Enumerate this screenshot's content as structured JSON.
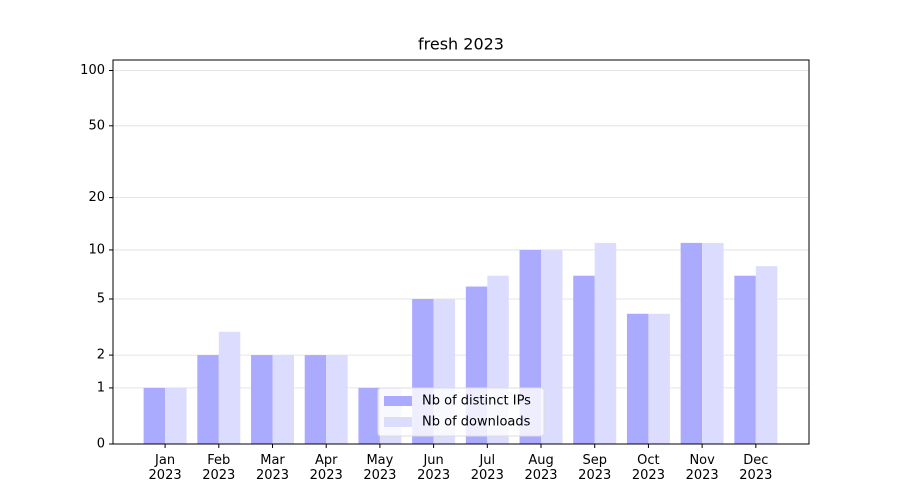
{
  "chart_data": {
    "type": "bar",
    "title": "fresh 2023",
    "categories": [
      "Jan\n2023",
      "Feb\n2023",
      "Mar\n2023",
      "Apr\n2023",
      "May\n2023",
      "Jun\n2023",
      "Jul\n2023",
      "Aug\n2023",
      "Sep\n2023",
      "Oct\n2023",
      "Nov\n2023",
      "Dec\n2023"
    ],
    "series": [
      {
        "name": "Nb of distinct IPs",
        "color": "#aaaaff",
        "values": [
          1,
          2,
          2,
          2,
          1,
          5,
          6,
          10,
          7,
          4,
          11,
          7
        ]
      },
      {
        "name": "Nb of downloads",
        "color": "#dcdcff",
        "values": [
          1,
          3,
          2,
          2,
          1,
          5,
          7,
          10,
          11,
          4,
          11,
          8
        ]
      }
    ],
    "yscale": "log1p",
    "ylim": [
      0,
      114
    ],
    "yticks": [
      0,
      1,
      2,
      5,
      10,
      20,
      50,
      100
    ],
    "grid": true,
    "legend": "lower center"
  }
}
